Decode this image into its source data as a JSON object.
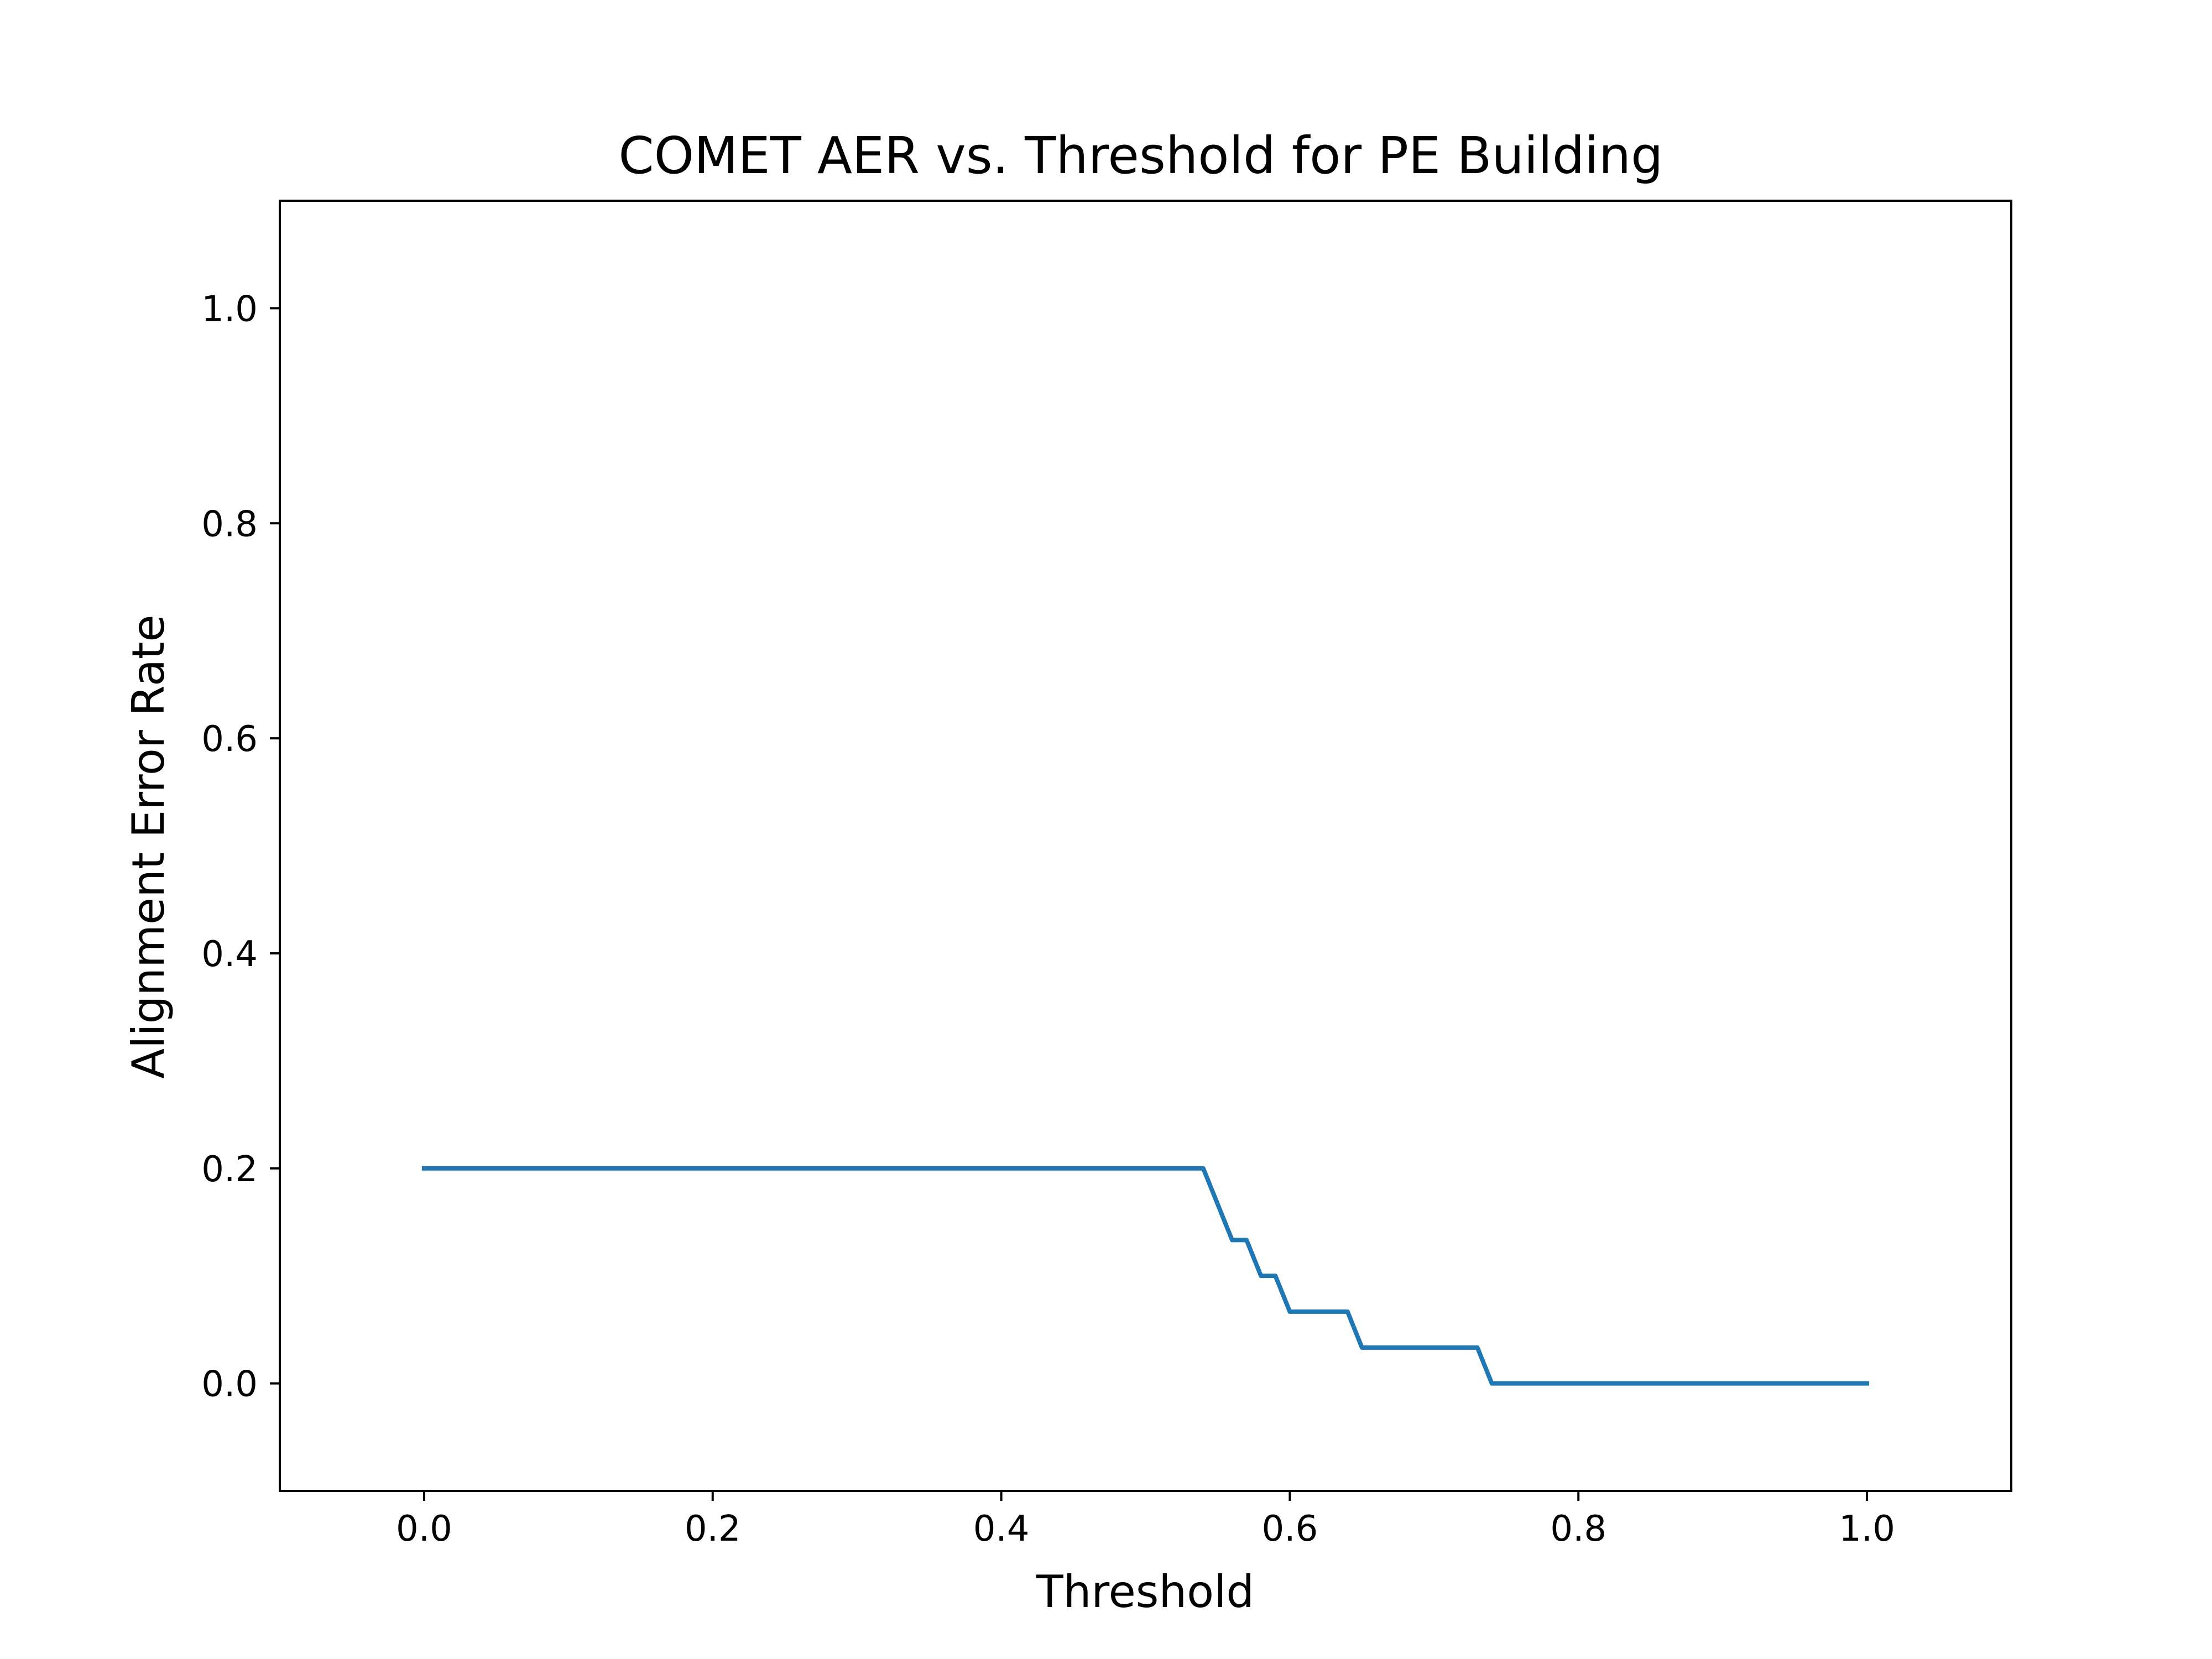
{
  "colors": {
    "background": "#ffffff",
    "axes": "#000000",
    "series": "#1f77b4"
  },
  "chart_data": {
    "type": "line",
    "title": "COMET AER vs. Threshold for PE Building",
    "xlabel": "Threshold",
    "ylabel": "Alignment Error Rate",
    "xlim": [
      -0.1,
      1.1
    ],
    "ylim": [
      -0.1,
      1.1
    ],
    "xticks": [
      0.0,
      0.2,
      0.4,
      0.6,
      0.8,
      1.0
    ],
    "xtick_labels": [
      "0.0",
      "0.2",
      "0.4",
      "0.6",
      "0.8",
      "1.0"
    ],
    "yticks": [
      0.0,
      0.2,
      0.4,
      0.6,
      0.8,
      1.0
    ],
    "ytick_labels": [
      "0.0",
      "0.2",
      "0.4",
      "0.6",
      "0.8",
      "1.0"
    ],
    "grid": false,
    "legend": "none",
    "series": [
      {
        "color": "#1f77b4",
        "x": [
          0.0,
          0.54,
          0.56,
          0.57,
          0.58,
          0.59,
          0.6,
          0.64,
          0.65,
          0.73,
          0.74,
          1.0
        ],
        "y": [
          0.2,
          0.2,
          0.1333,
          0.1333,
          0.1,
          0.1,
          0.0667,
          0.0667,
          0.0333,
          0.0333,
          0.0,
          0.0
        ]
      }
    ]
  }
}
